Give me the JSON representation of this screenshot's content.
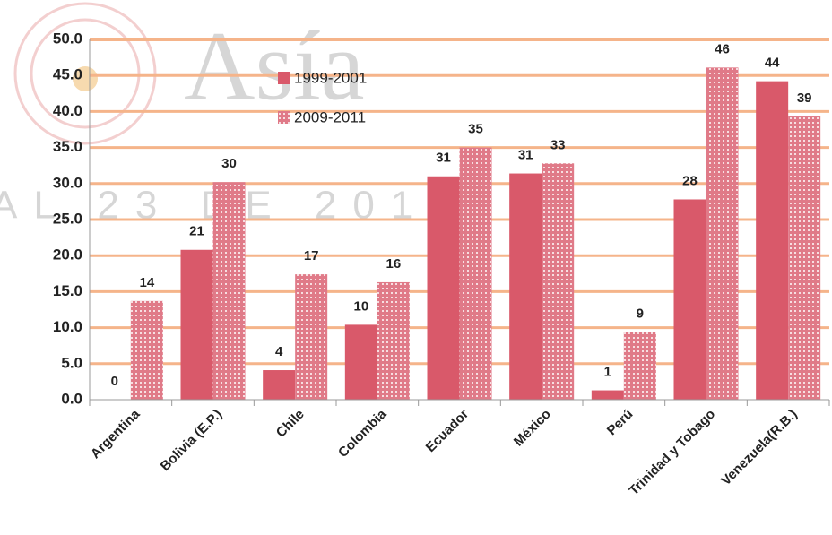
{
  "chart_data": {
    "type": "bar",
    "categories": [
      "Argentina",
      "Bolivia (E.P.)",
      "Chile",
      "Colombia",
      "Ecuador",
      "México",
      "Perú",
      "Trinidad y Tobago",
      "Venezuela(R.B.)"
    ],
    "series": [
      {
        "name": "1999-2001",
        "color": "#d9596a",
        "pattern": false,
        "values": [
          0,
          20.8,
          4.1,
          10.4,
          31.0,
          31.4,
          1.3,
          27.8,
          44.2
        ],
        "value_labels": [
          "0",
          "21",
          "4",
          "10",
          "31",
          "31",
          "1",
          "28",
          "44"
        ]
      },
      {
        "name": "2009-2011",
        "color": "#e07a88",
        "pattern": true,
        "values": [
          13.7,
          30.2,
          17.4,
          16.3,
          35.0,
          32.8,
          9.4,
          46.1,
          39.3
        ],
        "value_labels": [
          "14",
          "30",
          "17",
          "16",
          "35",
          "33",
          "9",
          "46",
          "39"
        ]
      }
    ],
    "ylim": [
      0,
      50
    ],
    "yticks": [
      {
        "value": 0,
        "label": "0.0"
      },
      {
        "value": 5,
        "label": "5.0"
      },
      {
        "value": 10,
        "label": "10.0"
      },
      {
        "value": 15,
        "label": "15.0"
      },
      {
        "value": 20,
        "label": "20.0"
      },
      {
        "value": 25,
        "label": "25.0"
      },
      {
        "value": 30,
        "label": "30.0"
      },
      {
        "value": 35,
        "label": "35.0"
      },
      {
        "value": 40,
        "label": "40.0"
      },
      {
        "value": 45,
        "label": "45.0"
      },
      {
        "value": 50,
        "label": "50.0"
      }
    ],
    "grid": true,
    "grid_color": "#f5b48a",
    "legend": "top",
    "annotations": [
      "Asía",
      "AL 23 DE 2013"
    ]
  }
}
